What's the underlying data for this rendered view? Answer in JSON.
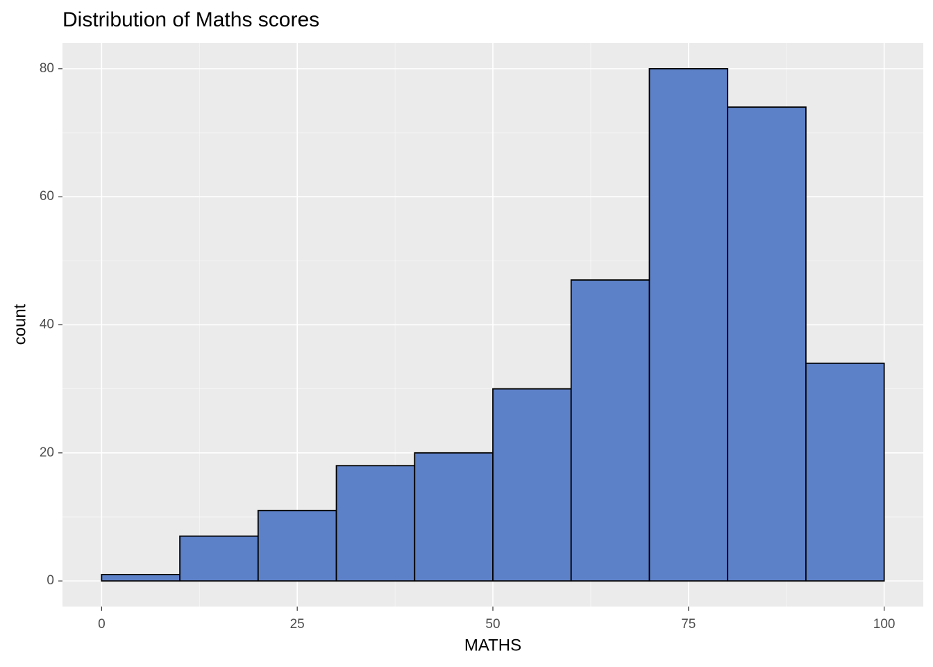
{
  "chart_data": {
    "type": "histogram",
    "title": "Distribution of Maths scores",
    "x_label": "MATHS",
    "y_label": "count",
    "bins": [
      0,
      10,
      20,
      30,
      40,
      50,
      60,
      70,
      80,
      90,
      100
    ],
    "values": [
      1,
      7,
      11,
      18,
      20,
      30,
      47,
      80,
      74,
      34
    ],
    "color": "#5d81c8",
    "edge_color": "#000000",
    "xlim": [
      -5,
      105
    ],
    "ylim": [
      -4,
      84
    ],
    "xticks": [
      0,
      25,
      50,
      75,
      100
    ],
    "yticks": [
      0,
      20,
      40,
      60,
      80
    ],
    "grid": true
  }
}
